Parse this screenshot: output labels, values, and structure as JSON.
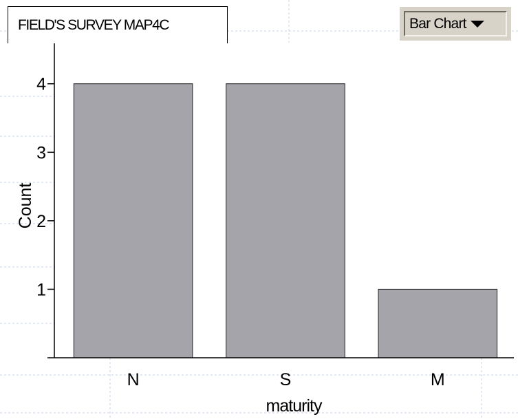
{
  "header": {
    "title": "FIELD'S SURVEY MAP4C",
    "chart_type_label": "Bar Chart",
    "chart_type_icon": "chevron-down-icon"
  },
  "colors": {
    "bar_fill": "#a4a4aa",
    "bar_stroke": "#222222",
    "axis": "#000000",
    "background_grid": "#c9d2e3",
    "selector_bg": "#d8d3c8"
  },
  "chart_data": {
    "type": "bar",
    "categories": [
      "N",
      "S",
      "M"
    ],
    "values": [
      4,
      4,
      1
    ],
    "xlabel": "maturity",
    "ylabel": "Count",
    "ylim": [
      0,
      4.6
    ],
    "yticks": [
      1,
      2,
      3,
      4
    ],
    "grid": false,
    "legend": "none"
  }
}
